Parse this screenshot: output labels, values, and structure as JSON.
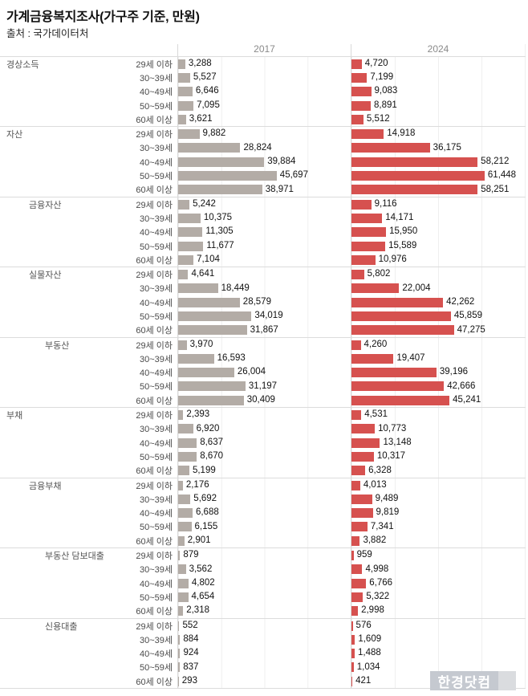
{
  "title": "가계금융복지조사(가구주 기준, 만원)",
  "source": "출처 : 국가데이터처",
  "columns": [
    "2017",
    "2024"
  ],
  "watermark": "한경닷컴",
  "colors": {
    "bar_2017": "#b3aca6",
    "bar_2024": "#d6514f",
    "grid_line": "#efefef",
    "panel_border": "#d9d9d9",
    "section_border": "#dcdcdc"
  },
  "chart_data": {
    "type": "bar",
    "orientation": "horizontal",
    "title": "가계금융복지조사(가구주 기준, 만원)",
    "xlim": [
      0,
      80000
    ],
    "gridline_interval": 20000,
    "legend_position": "column-headers-top",
    "series_names": [
      "2017",
      "2024"
    ],
    "age_groups": [
      "29세 이하",
      "30~39세",
      "40~49세",
      "50~59세",
      "60세 이상"
    ],
    "sections": [
      {
        "category": "경상소득",
        "indent": 0,
        "values_2017": [
          3288,
          5527,
          6646,
          7095,
          3621
        ],
        "values_2024": [
          4720,
          7199,
          9083,
          8891,
          5512
        ]
      },
      {
        "category": "자산",
        "indent": 0,
        "values_2017": [
          9882,
          28824,
          39884,
          45697,
          38971
        ],
        "values_2024": [
          14918,
          36175,
          58212,
          61448,
          58251
        ]
      },
      {
        "category": "금융자산",
        "indent": 1,
        "values_2017": [
          5242,
          10375,
          11305,
          11677,
          7104
        ],
        "values_2024": [
          9116,
          14171,
          15950,
          15589,
          10976
        ]
      },
      {
        "category": "실물자산",
        "indent": 1,
        "values_2017": [
          4641,
          18449,
          28579,
          34019,
          31867
        ],
        "values_2024": [
          5802,
          22004,
          42262,
          45859,
          47275
        ]
      },
      {
        "category": "부동산",
        "indent": 2,
        "values_2017": [
          3970,
          16593,
          26004,
          31197,
          30409
        ],
        "values_2024": [
          4260,
          19407,
          39196,
          42666,
          45241
        ]
      },
      {
        "category": "부채",
        "indent": 0,
        "values_2017": [
          2393,
          6920,
          8637,
          8670,
          5199
        ],
        "values_2024": [
          4531,
          10773,
          13148,
          10317,
          6328
        ]
      },
      {
        "category": "금융부채",
        "indent": 1,
        "values_2017": [
          2176,
          5692,
          6688,
          6155,
          2901
        ],
        "values_2024": [
          4013,
          9489,
          9819,
          7341,
          3882
        ]
      },
      {
        "category": "부동산 담보대출",
        "indent": 2,
        "values_2017": [
          879,
          3562,
          4802,
          4654,
          2318
        ],
        "values_2024": [
          959,
          4998,
          6766,
          5322,
          2998
        ]
      },
      {
        "category": "신용대출",
        "indent": 2,
        "values_2017": [
          552,
          884,
          924,
          837,
          293
        ],
        "values_2024": [
          576,
          1609,
          1488,
          1034,
          421
        ]
      }
    ]
  }
}
